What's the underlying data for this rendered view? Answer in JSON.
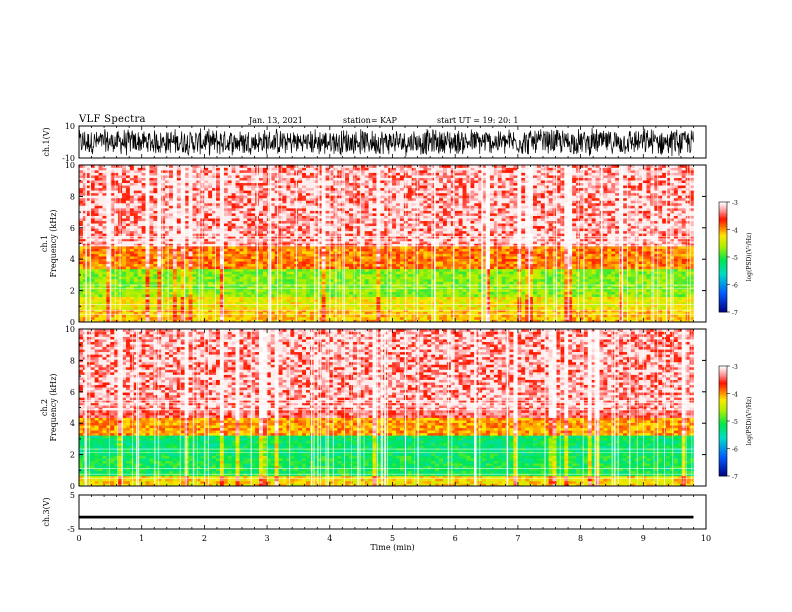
{
  "header": {
    "title": "VLF Spectra",
    "date": "Jan. 13, 2021",
    "station": "station= KAP",
    "start": "start  UT =  19: 20: 1"
  },
  "chart_data": [
    {
      "type": "line",
      "title": "",
      "ylabel": "ch.1(V)",
      "xlabel": "",
      "xlim": [
        0,
        10
      ],
      "ylim": [
        -10,
        10
      ],
      "ytick_labels": [
        "10",
        "-10"
      ],
      "description_values": {
        "typical_range": [
          -9,
          9
        ],
        "signal_end_min": 9.8
      }
    },
    {
      "type": "heatmap",
      "ylabel": "ch.1\nFrequency  (kHz)",
      "ylabel_line1": "ch.1",
      "ylabel_line2": "Frequency  (kHz)",
      "xlim": [
        0,
        10
      ],
      "ylim": [
        0,
        10
      ],
      "ytick_labels": [
        "0",
        "2",
        "4",
        "6",
        "8",
        "10"
      ],
      "colorbar": {
        "label": "log(PSD)(V²/Hz)",
        "range": [
          -7,
          -3
        ],
        "ticks": [
          "-3",
          "-4",
          "-5",
          "-6",
          "-7"
        ]
      },
      "bands": [
        {
          "from_khz": 0.0,
          "to_khz": 0.8,
          "level": -4.1
        },
        {
          "from_khz": 0.8,
          "to_khz": 1.6,
          "level": -4.3
        },
        {
          "from_khz": 1.6,
          "to_khz": 3.4,
          "level": -4.7
        },
        {
          "from_khz": 3.4,
          "to_khz": 4.8,
          "level": -3.9
        },
        {
          "from_khz": 4.8,
          "to_khz": 10.0,
          "level": -3.4
        }
      ]
    },
    {
      "type": "heatmap",
      "ylabel": "ch.2\nFrequency  (kHz)",
      "ylabel_line1": "ch.2",
      "ylabel_line2": "Frequency  (kHz)",
      "xlim": [
        0,
        10
      ],
      "ylim": [
        0,
        10
      ],
      "ytick_labels": [
        "0",
        "2",
        "4",
        "6",
        "8",
        "10"
      ],
      "colorbar": {
        "label": "log(PSD)(V²/Hz)",
        "range": [
          -7,
          -3
        ],
        "ticks": [
          "-3",
          "-4",
          "-5",
          "-6",
          "-7"
        ]
      },
      "bands": [
        {
          "from_khz": 0.0,
          "to_khz": 0.6,
          "level": -4.2
        },
        {
          "from_khz": 0.6,
          "to_khz": 1.9,
          "level": -5.1
        },
        {
          "from_khz": 1.9,
          "to_khz": 3.3,
          "level": -5.2
        },
        {
          "from_khz": 3.3,
          "to_khz": 4.3,
          "level": -4.0
        },
        {
          "from_khz": 4.3,
          "to_khz": 10.0,
          "level": -3.4
        }
      ]
    },
    {
      "type": "line",
      "ylabel": "ch.3(V)",
      "xlabel": "Time  (min)",
      "xlim": [
        0,
        10
      ],
      "ylim": [
        -5,
        5
      ],
      "ytick_labels": [
        "5",
        "-5"
      ],
      "xtick_labels": [
        "0",
        "1",
        "2",
        "3",
        "4",
        "5",
        "6",
        "7",
        "8",
        "9",
        "10"
      ],
      "description_values": {
        "center_v": -1.5,
        "half_width_v": 0.4,
        "signal_end_min": 9.8
      }
    }
  ]
}
